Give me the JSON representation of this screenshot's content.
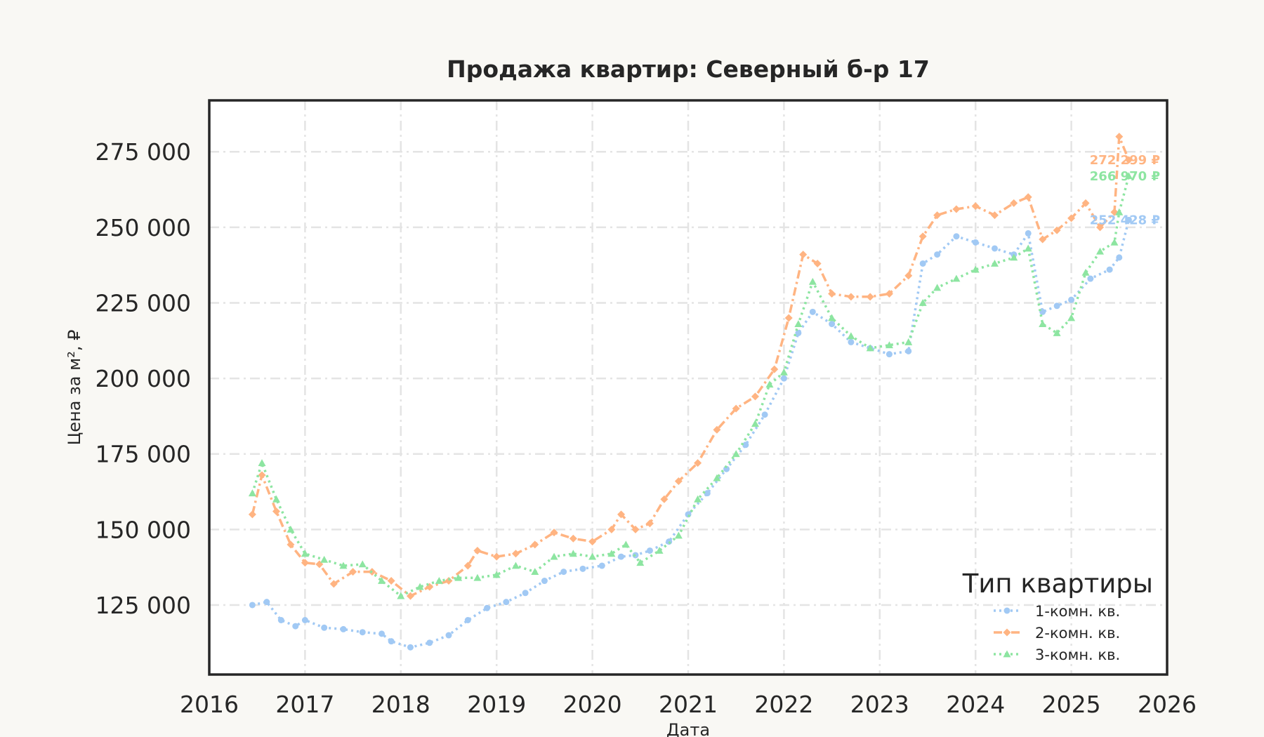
{
  "chart_data": {
    "type": "line",
    "title": "Продажа квартир: Северный б-р 17",
    "xlabel": "Дата",
    "ylabel": "Цена за м², ₽",
    "xlim": [
      2016,
      2026
    ],
    "ylim": [
      102000,
      292000
    ],
    "x_ticks": [
      "2016",
      "2017",
      "2018",
      "2019",
      "2020",
      "2021",
      "2022",
      "2023",
      "2024",
      "2025",
      "2026"
    ],
    "y_ticks": [
      "125 000",
      "150 000",
      "175 000",
      "200 000",
      "225 000",
      "250 000",
      "275 000"
    ],
    "y_tick_values": [
      125000,
      150000,
      175000,
      200000,
      225000,
      250000,
      275000
    ],
    "grid": true,
    "legend": {
      "title": "Тип квартиры",
      "placement": "bottom-right"
    },
    "series": [
      {
        "name": "1-комн. кв.",
        "color": "#a1c9f4",
        "line_style": "dotted",
        "marker": "circle",
        "last_label": "252 428 ₽",
        "x": [
          2016.45,
          2016.6,
          2016.75,
          2016.9,
          2017.0,
          2017.2,
          2017.4,
          2017.6,
          2017.8,
          2017.9,
          2018.1,
          2018.3,
          2018.5,
          2018.7,
          2018.9,
          2019.1,
          2019.3,
          2019.5,
          2019.7,
          2019.9,
          2020.1,
          2020.3,
          2020.45,
          2020.6,
          2020.8,
          2021.0,
          2021.2,
          2021.4,
          2021.6,
          2021.8,
          2022.0,
          2022.15,
          2022.3,
          2022.5,
          2022.7,
          2022.9,
          2023.1,
          2023.3,
          2023.45,
          2023.6,
          2023.8,
          2024.0,
          2024.2,
          2024.4,
          2024.55,
          2024.7,
          2024.85,
          2025.0,
          2025.2,
          2025.4,
          2025.5,
          2025.6
        ],
        "y": [
          125000,
          126000,
          120000,
          118000,
          120000,
          117500,
          117000,
          116000,
          115500,
          113000,
          111000,
          112500,
          115000,
          120000,
          124000,
          126000,
          129000,
          133000,
          136000,
          137000,
          138000,
          141000,
          141500,
          143000,
          146000,
          155000,
          162000,
          170000,
          178000,
          188000,
          200000,
          215000,
          222000,
          218000,
          212000,
          210000,
          208000,
          209000,
          238000,
          241000,
          247000,
          245000,
          243000,
          241000,
          248000,
          222000,
          224000,
          226000,
          233000,
          236000,
          240000,
          252428
        ]
      },
      {
        "name": "2-комн. кв.",
        "color": "#ffb482",
        "line_style": "dashdot",
        "marker": "diamond",
        "last_label": "272 299 ₽",
        "x": [
          2016.45,
          2016.55,
          2016.7,
          2016.85,
          2017.0,
          2017.15,
          2017.3,
          2017.5,
          2017.7,
          2017.9,
          2018.1,
          2018.3,
          2018.5,
          2018.7,
          2018.8,
          2019.0,
          2019.2,
          2019.4,
          2019.6,
          2019.8,
          2020.0,
          2020.2,
          2020.3,
          2020.45,
          2020.6,
          2020.75,
          2020.9,
          2021.1,
          2021.3,
          2021.5,
          2021.7,
          2021.9,
          2022.05,
          2022.2,
          2022.35,
          2022.5,
          2022.7,
          2022.9,
          2023.1,
          2023.3,
          2023.45,
          2023.6,
          2023.8,
          2024.0,
          2024.2,
          2024.4,
          2024.55,
          2024.7,
          2024.85,
          2025.0,
          2025.15,
          2025.3,
          2025.45,
          2025.5,
          2025.6
        ],
        "y": [
          155000,
          168000,
          156000,
          145000,
          139000,
          138500,
          132000,
          136000,
          136000,
          133000,
          128000,
          131000,
          133000,
          138000,
          143000,
          141000,
          142000,
          145000,
          149000,
          147000,
          146000,
          150000,
          155000,
          150000,
          152000,
          160000,
          166000,
          172000,
          183000,
          190000,
          194000,
          203000,
          220000,
          241000,
          238000,
          228000,
          227000,
          227000,
          228000,
          234000,
          247000,
          254000,
          256000,
          257000,
          254000,
          258000,
          260000,
          246000,
          249000,
          253000,
          258000,
          250000,
          255000,
          280000,
          272299
        ]
      },
      {
        "name": "3-комн. кв.",
        "color": "#8de5a1",
        "line_style": "dotted",
        "marker": "triangle",
        "last_label": "266 970 ₽",
        "x": [
          2016.45,
          2016.55,
          2016.7,
          2016.85,
          2017.0,
          2017.2,
          2017.4,
          2017.6,
          2017.8,
          2018.0,
          2018.2,
          2018.4,
          2018.6,
          2018.8,
          2019.0,
          2019.2,
          2019.4,
          2019.6,
          2019.8,
          2020.0,
          2020.2,
          2020.35,
          2020.5,
          2020.7,
          2020.9,
          2021.1,
          2021.3,
          2021.5,
          2021.7,
          2021.85,
          2022.0,
          2022.15,
          2022.3,
          2022.5,
          2022.7,
          2022.9,
          2023.1,
          2023.3,
          2023.45,
          2023.6,
          2023.8,
          2024.0,
          2024.2,
          2024.4,
          2024.55,
          2024.7,
          2024.85,
          2025.0,
          2025.15,
          2025.3,
          2025.45,
          2025.5,
          2025.6
        ],
        "y": [
          162000,
          172000,
          160000,
          150000,
          142000,
          140000,
          138000,
          138500,
          133000,
          128000,
          131000,
          133000,
          134000,
          134000,
          135000,
          138000,
          136000,
          141000,
          142000,
          141000,
          142000,
          145000,
          139000,
          143000,
          148000,
          160000,
          167000,
          175000,
          185000,
          198000,
          202000,
          218000,
          232000,
          220000,
          214000,
          210000,
          211000,
          212000,
          225000,
          230000,
          233000,
          236000,
          238000,
          240000,
          243000,
          218000,
          215000,
          220000,
          235000,
          242000,
          245000,
          255000,
          266970
        ]
      }
    ]
  }
}
